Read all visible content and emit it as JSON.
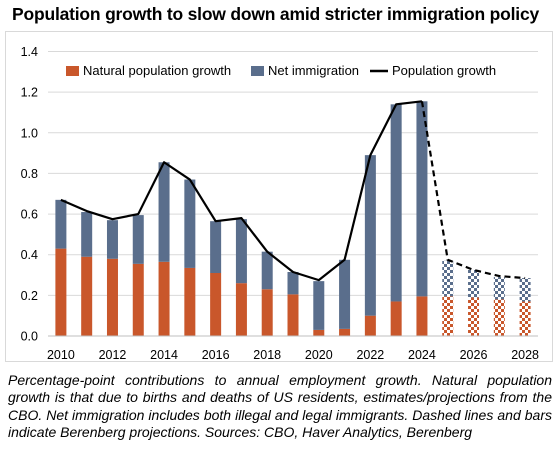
{
  "title": "Population growth to slow down amid stricter immigration policy",
  "caption": "Percentage-point contributions to annual employment growth. Natural population growth is that due to births and deaths of US residents, estimates/projections from the CBO. Net immigration includes both illegal and legal immigrants. Dashed lines and bars indicate Berenberg projections. Sources: CBO, Haver Analytics, Berenberg",
  "colors": {
    "natural": "#c9572b",
    "immigration": "#5a6e8c",
    "line": "#000000"
  },
  "chart_data": {
    "type": "bar",
    "stacked": true,
    "categories": [
      "2010",
      "2011",
      "2012",
      "2013",
      "2014",
      "2015",
      "2016",
      "2017",
      "2018",
      "2019",
      "2020",
      "2021",
      "2022",
      "2023",
      "2024",
      "2025",
      "2026",
      "2027",
      "2028"
    ],
    "x_tick_labels": [
      "2010",
      "2012",
      "2014",
      "2016",
      "2018",
      "2020",
      "2022",
      "2024",
      "2026",
      "2028"
    ],
    "ylim": [
      0,
      1.4
    ],
    "y_ticks": [
      "0.0",
      "0.2",
      "0.4",
      "0.6",
      "0.8",
      "1.0",
      "1.2",
      "1.4"
    ],
    "grid": true,
    "legend_position": "top",
    "projection_start_index": 15,
    "series": [
      {
        "name": "Natural population growth",
        "kind": "bar",
        "values": [
          0.43,
          0.39,
          0.38,
          0.355,
          0.365,
          0.335,
          0.31,
          0.26,
          0.23,
          0.205,
          0.03,
          0.035,
          0.1,
          0.17,
          0.195,
          0.195,
          0.19,
          0.18,
          0.17
        ]
      },
      {
        "name": "Net immigration",
        "kind": "bar",
        "values": [
          0.24,
          0.22,
          0.19,
          0.24,
          0.49,
          0.435,
          0.255,
          0.315,
          0.185,
          0.11,
          0.24,
          0.34,
          0.79,
          0.97,
          0.96,
          0.175,
          0.135,
          0.11,
          0.115
        ]
      },
      {
        "name": "Population growth",
        "kind": "line",
        "values": [
          0.67,
          0.615,
          0.575,
          0.6,
          0.855,
          0.77,
          0.565,
          0.58,
          0.415,
          0.315,
          0.275,
          0.375,
          0.89,
          1.14,
          1.155,
          0.375,
          0.325,
          0.295,
          0.285
        ]
      }
    ]
  }
}
